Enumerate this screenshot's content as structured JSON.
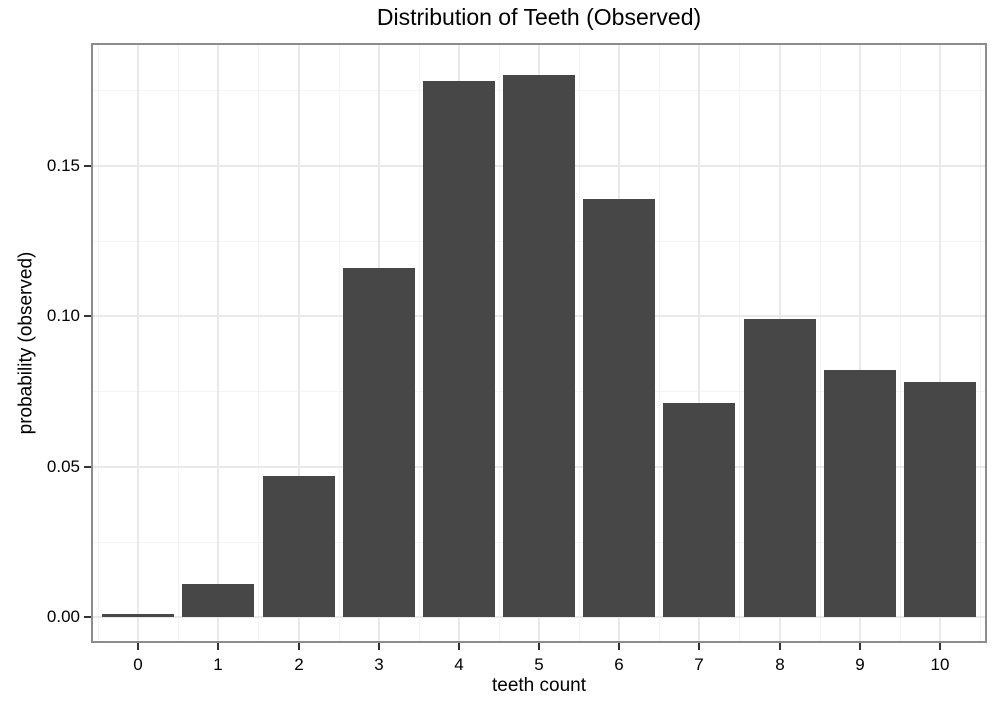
{
  "chart_data": {
    "type": "bar",
    "title": "Distribution of Teeth (Observed)",
    "xlabel": "teeth count",
    "ylabel": "probability (observed)",
    "categories": [
      "0",
      "1",
      "2",
      "3",
      "4",
      "5",
      "6",
      "7",
      "8",
      "9",
      "10"
    ],
    "values": [
      0.001,
      0.011,
      0.047,
      0.116,
      0.178,
      0.18,
      0.139,
      0.071,
      0.099,
      0.082,
      0.078
    ],
    "y_major_ticks": [
      0.0,
      0.05,
      0.1,
      0.15
    ],
    "y_tick_labels": [
      "0.00",
      "0.05",
      "0.10",
      "0.15"
    ],
    "y_minor_ticks": [
      0.025,
      0.075,
      0.125,
      0.175
    ],
    "ylim": [
      -0.0083,
      0.1904
    ],
    "grid": "major-and-minor",
    "legend": "none",
    "bar_width_ratio": 0.9,
    "colors": {
      "bar_fill": "#474747",
      "panel_border": "#8c8c8c",
      "grid_major": "#e9e9e9",
      "grid_minor": "#f4f4f4",
      "axis_tick": "#333333",
      "text": "#000000",
      "background": "#ffffff"
    }
  }
}
